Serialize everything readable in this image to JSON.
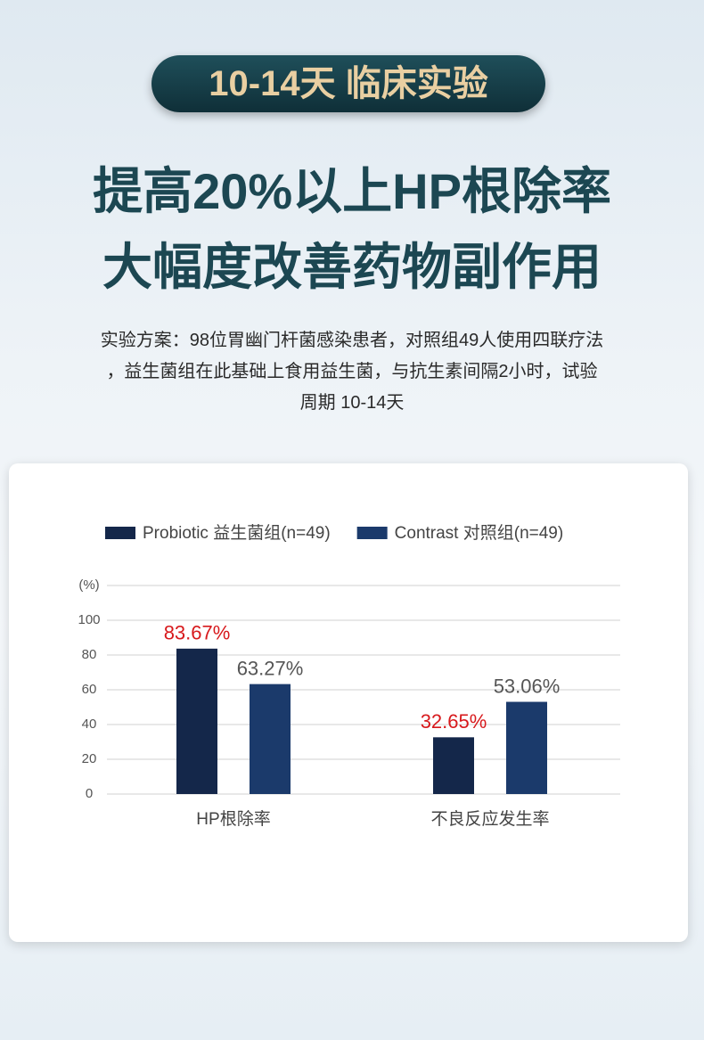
{
  "header": {
    "badge": "10-14天 临床实验",
    "headlines": [
      "提高20%以上HP根除率",
      "大幅度改善药物副作用"
    ],
    "description": [
      "实验方案：98位胃幽门杆菌感染患者，对照组49人使用四联疗法",
      "，益生菌组在此基础上食用益生菌，与抗生素间隔2小时，试验",
      "周期 10-14天"
    ]
  },
  "chart_data": {
    "type": "bar",
    "categories": [
      "HP根除率",
      "不良反应发生率"
    ],
    "series": [
      {
        "name": "Probiotic 益生菌组(n=49)",
        "color": "#14274a",
        "label_color": "#d7191c",
        "values": [
          83.67,
          32.65
        ],
        "value_labels": [
          "83.67%",
          "32.65%"
        ]
      },
      {
        "name": "Contrast 对照组(n=49)",
        "color": "#1b3a6b",
        "label_color": "#555555",
        "values": [
          63.27,
          53.06
        ],
        "value_labels": [
          "63.27%",
          "53.06%"
        ]
      }
    ],
    "ylim": [
      0,
      120
    ],
    "yticks": [
      0,
      20,
      40,
      60,
      80,
      100,
      {
        "value": 120,
        "label": "(%)"
      }
    ],
    "grid": true,
    "legend": "top"
  }
}
